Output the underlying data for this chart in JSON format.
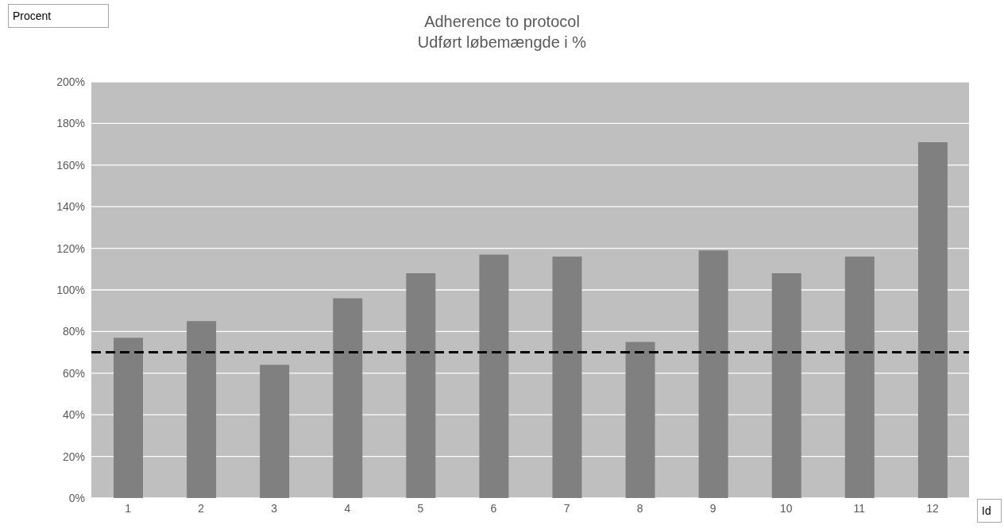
{
  "chart_data": {
    "type": "bar",
    "title": "Adherence to protocol",
    "subtitle": "Udført løbemængde i %",
    "ylabel": "Procent",
    "xlabel": "Id",
    "categories": [
      "1",
      "2",
      "3",
      "4",
      "5",
      "6",
      "7",
      "8",
      "9",
      "10",
      "11",
      "12"
    ],
    "values": [
      77,
      85,
      64,
      96,
      108,
      117,
      116,
      75,
      119,
      108,
      116,
      171
    ],
    "color": "#808080",
    "ylim": [
      0,
      200
    ],
    "yticks": [
      {
        "value": 0,
        "label": "0%"
      },
      {
        "value": 20,
        "label": "20%"
      },
      {
        "value": 40,
        "label": "40%"
      },
      {
        "value": 60,
        "label": "60%"
      },
      {
        "value": 80,
        "label": "80%"
      },
      {
        "value": 100,
        "label": "100%"
      },
      {
        "value": 120,
        "label": "120%"
      },
      {
        "value": 140,
        "label": "140%"
      },
      {
        "value": 160,
        "label": "160%"
      },
      {
        "value": 180,
        "label": "180%"
      },
      {
        "value": 200,
        "label": "200%"
      }
    ],
    "grid": "y",
    "ref_lines": [
      {
        "axis": "y",
        "value": 70,
        "color": "#000000",
        "line_style": "dashed"
      }
    ]
  }
}
